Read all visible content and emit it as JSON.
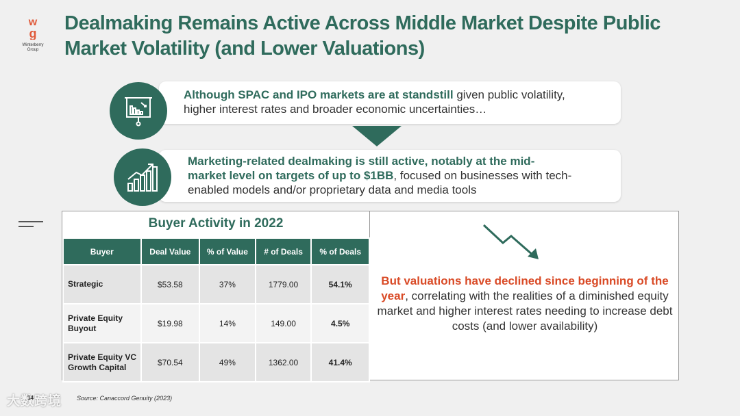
{
  "brand": {
    "name_line1": "Winterberry",
    "name_line2": "Group",
    "accent": "#2f6b5c",
    "highlight": "#d94a26"
  },
  "title": {
    "line1": "Dealmaking Remains Active Across Middle Market Despite Public",
    "line2": "Market Volatility (and Lower Valuations)"
  },
  "point1": {
    "bold": "Although SPAC and IPO markets are at standstill",
    "rest1": " given public volatility,",
    "rest2": "higher interest rates and broader economic uncertainties…",
    "icon": "presentation-chart-declining-icon"
  },
  "point2": {
    "bold1": "Marketing-related dealmaking is still active, notably at the mid-",
    "bold2": "market level on targets of up to $1BB",
    "rest1": ", focused on businesses with tech-",
    "rest2": "enabled models and/or proprietary data and media tools",
    "icon": "growth-bar-chart-icon"
  },
  "table": {
    "title": "Buyer Activity in 2022",
    "headers": [
      "Buyer",
      "Deal Value",
      "% of Value",
      "# of Deals",
      "% of Deals"
    ],
    "rows": [
      {
        "buyer": "Strategic",
        "value": "$53.58",
        "pct_value": "37%",
        "deals": "1779.00",
        "pct_deals": "54.1%"
      },
      {
        "buyer": "Private Equity Buyout",
        "value": "$19.98",
        "pct_value": "14%",
        "deals": "149.00",
        "pct_deals": "4.5%"
      },
      {
        "buyer": "Private Equity VC Growth Capital",
        "value": "$70.54",
        "pct_value": "49%",
        "deals": "1362.00",
        "pct_deals": "41.4%"
      }
    ]
  },
  "valuation_note": {
    "highlight": "But valuations have declined since beginning of the year",
    "rest": ", correlating with the realities of a diminished equity market and higher interest rates needing to increase debt costs (and lower availability)",
    "icon": "downward-trend-arrow-icon"
  },
  "footer": {
    "page": "14",
    "source": "Source: Canaccord Genuity (2023)",
    "watermark": "大数跨境"
  }
}
